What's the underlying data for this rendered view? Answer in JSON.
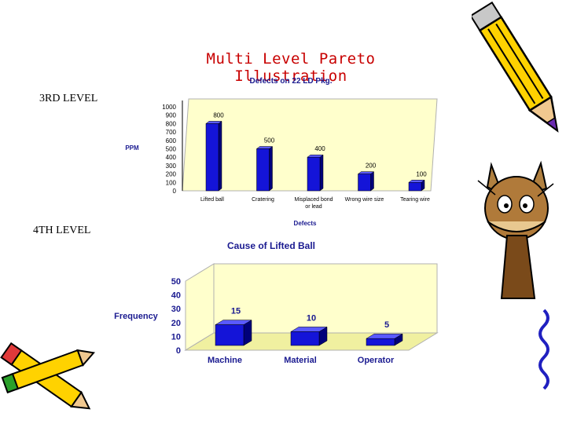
{
  "slide": {
    "title": "Multi  Level  Pareto  Illustration",
    "level3_label": "3RD  LEVEL",
    "level4_label": "4TH  LEVEL"
  },
  "colors": {
    "title": "#c80000",
    "bar": "#1414d8",
    "bar_side": "#00007a",
    "bar_top": "#5a5aff",
    "plot_bg": "#ffffcc",
    "axis_text": "#1a1a90"
  },
  "chart_data": [
    {
      "type": "bar",
      "title": "Defects  on  22 LD Pkg.",
      "ylabel": "PPM",
      "xlabel": "Defects",
      "categories": [
        "Lifted ball",
        "Cratering",
        "Misplaced bond or lead",
        "Wrong wire size",
        "Tearing wire"
      ],
      "category_lines": [
        [
          "Lifted ball"
        ],
        [
          "Cratering"
        ],
        [
          "Misplaced bond",
          "or lead"
        ],
        [
          "Wrong wire size"
        ],
        [
          "Tearing wire"
        ]
      ],
      "values": [
        800,
        500,
        400,
        200,
        100
      ],
      "ylim": [
        0,
        1000
      ],
      "yticks": [
        0,
        100,
        200,
        300,
        400,
        500,
        600,
        700,
        800,
        900,
        1000
      ],
      "data_labels": [
        "800",
        "500",
        "400",
        "200",
        "100"
      ],
      "grid": false
    },
    {
      "type": "bar",
      "title": "Cause of Lifted Ball",
      "ylabel": "Frequency",
      "xlabel": "",
      "categories": [
        "Machine",
        "Material",
        "Operator"
      ],
      "values": [
        15,
        10,
        5
      ],
      "ylim": [
        0,
        50
      ],
      "yticks": [
        0,
        10,
        20,
        30,
        40,
        50
      ],
      "data_labels": [
        "15",
        "10",
        "5"
      ],
      "grid": false
    }
  ],
  "clipart": [
    "pencil-icon",
    "cat-icon",
    "pencils-icon"
  ]
}
